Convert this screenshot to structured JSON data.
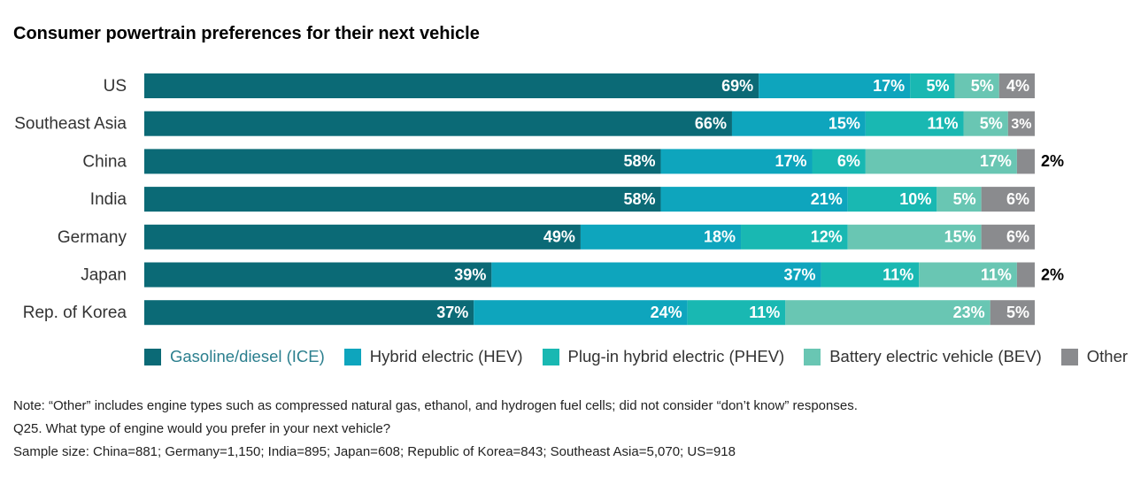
{
  "title": "Consumer powertrain preferences for their next vehicle",
  "chart_data": {
    "type": "bar",
    "orientation": "horizontal",
    "stacked": true,
    "categories": [
      "US",
      "Southeast Asia",
      "China",
      "India",
      "Germany",
      "Japan",
      "Rep. of Korea"
    ],
    "series": [
      {
        "name": "Gasoline/diesel (ICE)",
        "color": "#0b6a76",
        "label_color": "#2b7f8e",
        "values": [
          69,
          66,
          58,
          58,
          49,
          39,
          37
        ]
      },
      {
        "name": "Hybrid electric (HEV)",
        "color": "#0ea5bd",
        "label_color": "#333333",
        "values": [
          17,
          15,
          17,
          21,
          18,
          37,
          24
        ]
      },
      {
        "name": "Plug-in hybrid electric (PHEV)",
        "color": "#19b8b2",
        "label_color": "#333333",
        "values": [
          5,
          11,
          6,
          10,
          12,
          11,
          11
        ]
      },
      {
        "name": "Battery electric vehicle (BEV)",
        "color": "#69c6b3",
        "label_color": "#333333",
        "values": [
          5,
          5,
          17,
          5,
          15,
          11,
          23
        ]
      },
      {
        "name": "Other",
        "color": "#8a8b8e",
        "label_color": "#333333",
        "values": [
          4,
          3,
          2,
          6,
          6,
          2,
          5
        ]
      }
    ],
    "value_suffix": "%",
    "outside_labels": [
      false,
      false,
      true,
      false,
      false,
      true,
      false
    ],
    "legend_position": "bottom",
    "grid": false
  },
  "notes": [
    "Note: “Other” includes engine types such as compressed natural gas, ethanol, and hydrogen fuel cells; did not consider “don’t know” responses.",
    "Q25. What type of engine would you prefer in your next vehicle?",
    "Sample size: China=881; Germany=1,150; India=895; Japan=608; Republic of Korea=843; Southeast Asia=5,070; US=918"
  ]
}
